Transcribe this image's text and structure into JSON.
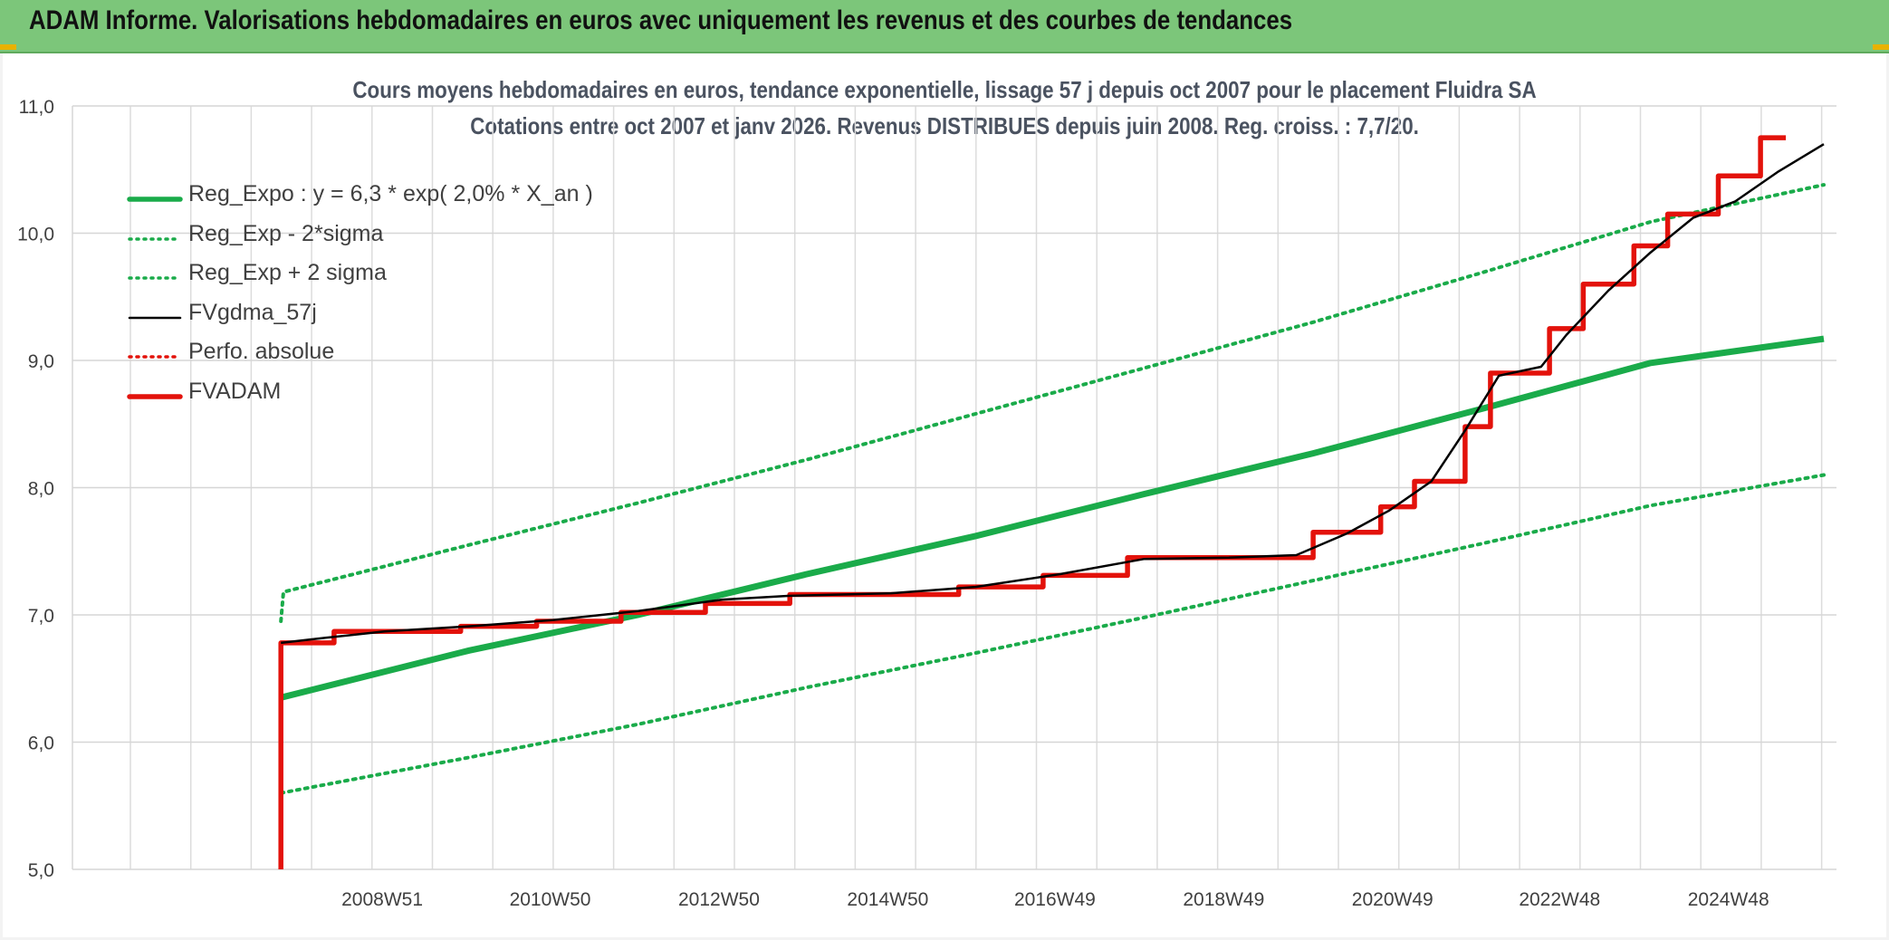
{
  "header": {
    "title": "ADAM Informe. Valorisations hebdomadaires en euros avec uniquement les revenus et des courbes de tendances"
  },
  "chart_data": {
    "type": "line",
    "title": "Cours moyens hebdomadaires en euros, tendance exponentielle, lissage 57 j depuis oct 2007 pour le placement Fluidra SA",
    "subtitle": "Cotations entre oct 2007 et janv 2026. Revenus DISTRIBUES depuis juin 2008. Reg. croiss. : 7,7/20.",
    "ylim": [
      5.0,
      11.0
    ],
    "y_ticks": [
      "5,0",
      "6,0",
      "7,0",
      "8,0",
      "9,0",
      "10,0",
      "11,0"
    ],
    "x_tick_labels": [
      "2008W51",
      "2010W50",
      "2012W50",
      "2014W50",
      "2016W49",
      "2018W49",
      "2020W49",
      "2022W48",
      "2024W48"
    ],
    "x_tick_years": [
      2008.97,
      2010.96,
      2012.96,
      2014.96,
      2016.94,
      2018.94,
      2020.94,
      2022.92,
      2024.92
    ],
    "grid": true,
    "legend_position": "top-left",
    "colors": {
      "green": "#1aab4a",
      "red": "#e3120b",
      "black": "#000000"
    },
    "series": [
      {
        "name": "Reg_Expo : y = 6,3 * exp( 2,0% *  X_an )",
        "style": "solid-thick",
        "color": "#1aab4a",
        "points": [
          [
            2007.77,
            6.35
          ],
          [
            2010.0,
            6.72
          ],
          [
            2012.0,
            7.0
          ],
          [
            2014.0,
            7.32
          ],
          [
            2016.0,
            7.62
          ],
          [
            2018.0,
            7.95
          ],
          [
            2020.0,
            8.27
          ],
          [
            2022.0,
            8.62
          ],
          [
            2024.0,
            8.98
          ],
          [
            2026.05,
            9.17
          ]
        ]
      },
      {
        "name": "Reg_Exp - 2*sigma",
        "style": "dotted",
        "color": "#1aab4a",
        "points": [
          [
            2007.77,
            5.6
          ],
          [
            2010.0,
            5.88
          ],
          [
            2012.0,
            6.14
          ],
          [
            2014.0,
            6.43
          ],
          [
            2016.0,
            6.7
          ],
          [
            2018.0,
            6.98
          ],
          [
            2020.0,
            7.27
          ],
          [
            2022.0,
            7.56
          ],
          [
            2024.0,
            7.86
          ],
          [
            2026.05,
            8.1
          ]
        ]
      },
      {
        "name": "Reg_Exp + 2 sigma",
        "style": "dotted",
        "color": "#1aab4a",
        "points": [
          [
            2007.77,
            6.95
          ],
          [
            2007.8,
            7.18
          ],
          [
            2010.0,
            7.55
          ],
          [
            2012.0,
            7.88
          ],
          [
            2014.0,
            8.22
          ],
          [
            2016.0,
            8.58
          ],
          [
            2018.0,
            8.94
          ],
          [
            2020.0,
            9.3
          ],
          [
            2022.0,
            9.69
          ],
          [
            2024.0,
            10.09
          ],
          [
            2026.05,
            10.38
          ]
        ]
      },
      {
        "name": "FVgdma_57j",
        "style": "solid-thin",
        "color": "#000000",
        "points": [
          [
            2007.77,
            6.78
          ],
          [
            2008.3,
            6.82
          ],
          [
            2009.0,
            6.87
          ],
          [
            2010.0,
            6.91
          ],
          [
            2011.0,
            6.96
          ],
          [
            2012.0,
            7.03
          ],
          [
            2013.0,
            7.12
          ],
          [
            2013.8,
            7.15
          ],
          [
            2015.0,
            7.17
          ],
          [
            2016.0,
            7.22
          ],
          [
            2017.0,
            7.32
          ],
          [
            2018.0,
            7.44
          ],
          [
            2019.0,
            7.45
          ],
          [
            2019.8,
            7.47
          ],
          [
            2020.4,
            7.64
          ],
          [
            2020.9,
            7.82
          ],
          [
            2021.4,
            8.05
          ],
          [
            2021.8,
            8.45
          ],
          [
            2022.2,
            8.88
          ],
          [
            2022.7,
            8.95
          ],
          [
            2023.0,
            9.2
          ],
          [
            2023.5,
            9.55
          ],
          [
            2024.0,
            9.85
          ],
          [
            2024.5,
            10.12
          ],
          [
            2025.0,
            10.25
          ],
          [
            2025.5,
            10.48
          ],
          [
            2026.05,
            10.7
          ]
        ]
      },
      {
        "name": "Perfo. absolue",
        "style": "dotted",
        "color": "#e3120b",
        "points": []
      },
      {
        "name": "FVADAM",
        "style": "step-thick",
        "color": "#e3120b",
        "points": [
          [
            2007.77,
            5.0
          ],
          [
            2007.77,
            6.78
          ],
          [
            2008.4,
            6.78
          ],
          [
            2008.4,
            6.87
          ],
          [
            2009.9,
            6.87
          ],
          [
            2009.9,
            6.91
          ],
          [
            2010.8,
            6.91
          ],
          [
            2010.8,
            6.95
          ],
          [
            2011.8,
            6.95
          ],
          [
            2011.8,
            7.02
          ],
          [
            2012.8,
            7.02
          ],
          [
            2012.8,
            7.09
          ],
          [
            2013.8,
            7.09
          ],
          [
            2013.8,
            7.16
          ],
          [
            2015.8,
            7.16
          ],
          [
            2015.8,
            7.22
          ],
          [
            2016.8,
            7.22
          ],
          [
            2016.8,
            7.31
          ],
          [
            2017.8,
            7.31
          ],
          [
            2017.8,
            7.45
          ],
          [
            2020.0,
            7.45
          ],
          [
            2020.0,
            7.65
          ],
          [
            2020.8,
            7.65
          ],
          [
            2020.8,
            7.85
          ],
          [
            2021.2,
            7.85
          ],
          [
            2021.2,
            8.05
          ],
          [
            2021.8,
            8.05
          ],
          [
            2021.8,
            8.48
          ],
          [
            2022.1,
            8.48
          ],
          [
            2022.1,
            8.9
          ],
          [
            2022.8,
            8.9
          ],
          [
            2022.8,
            9.25
          ],
          [
            2023.2,
            9.25
          ],
          [
            2023.2,
            9.6
          ],
          [
            2023.8,
            9.6
          ],
          [
            2023.8,
            9.9
          ],
          [
            2024.2,
            9.9
          ],
          [
            2024.2,
            10.15
          ],
          [
            2024.8,
            10.15
          ],
          [
            2024.8,
            10.45
          ],
          [
            2025.3,
            10.45
          ],
          [
            2025.3,
            10.75
          ],
          [
            2025.6,
            10.75
          ]
        ]
      }
    ]
  }
}
